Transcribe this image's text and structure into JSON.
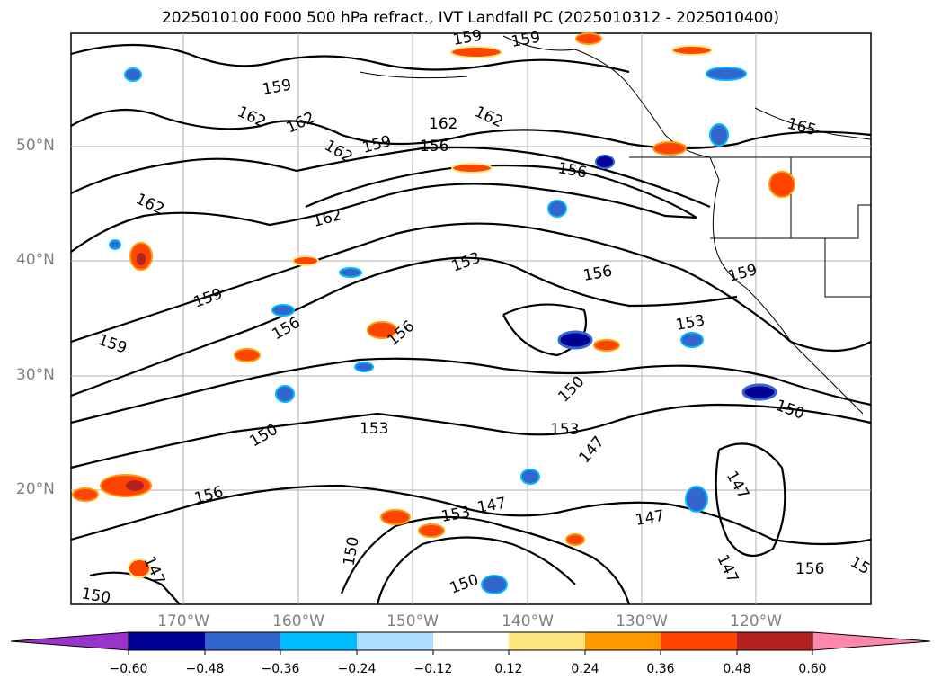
{
  "title": "2025010100 F000 500 hPa refract., IVT Landfall PC (2025010312 - 2025010400)",
  "lat_labels": [
    "50°N",
    "40°N",
    "30°N",
    "20°N"
  ],
  "lon_labels": [
    "170°W",
    "160°W",
    "150°W",
    "140°W",
    "130°W",
    "120°W"
  ],
  "contour_labels": [
    "159",
    "159",
    "159",
    "162",
    "162",
    "162",
    "162",
    "162",
    "159",
    "156",
    "156",
    "165",
    "162",
    "162",
    "153",
    "156",
    "159",
    "159",
    "156",
    "156",
    "159",
    "153",
    "150",
    "153",
    "150",
    "153",
    "150",
    "147",
    "147",
    "156",
    "153",
    "147",
    "147",
    "150",
    "156",
    "147",
    "147",
    "150",
    "150",
    "15"
  ],
  "colorbar": {
    "ticks": [
      "−0.60",
      "−0.48",
      "−0.36",
      "−0.24",
      "−0.12",
      "0.12",
      "0.24",
      "0.36",
      "0.48",
      "0.60"
    ],
    "colors": [
      "#9933cc",
      "#000099",
      "#3366cc",
      "#00bbff",
      "#aaddff",
      "#ffffff",
      "#ffe680",
      "#ff9900",
      "#ff4400",
      "#b22222",
      "#ff88aa"
    ]
  }
}
